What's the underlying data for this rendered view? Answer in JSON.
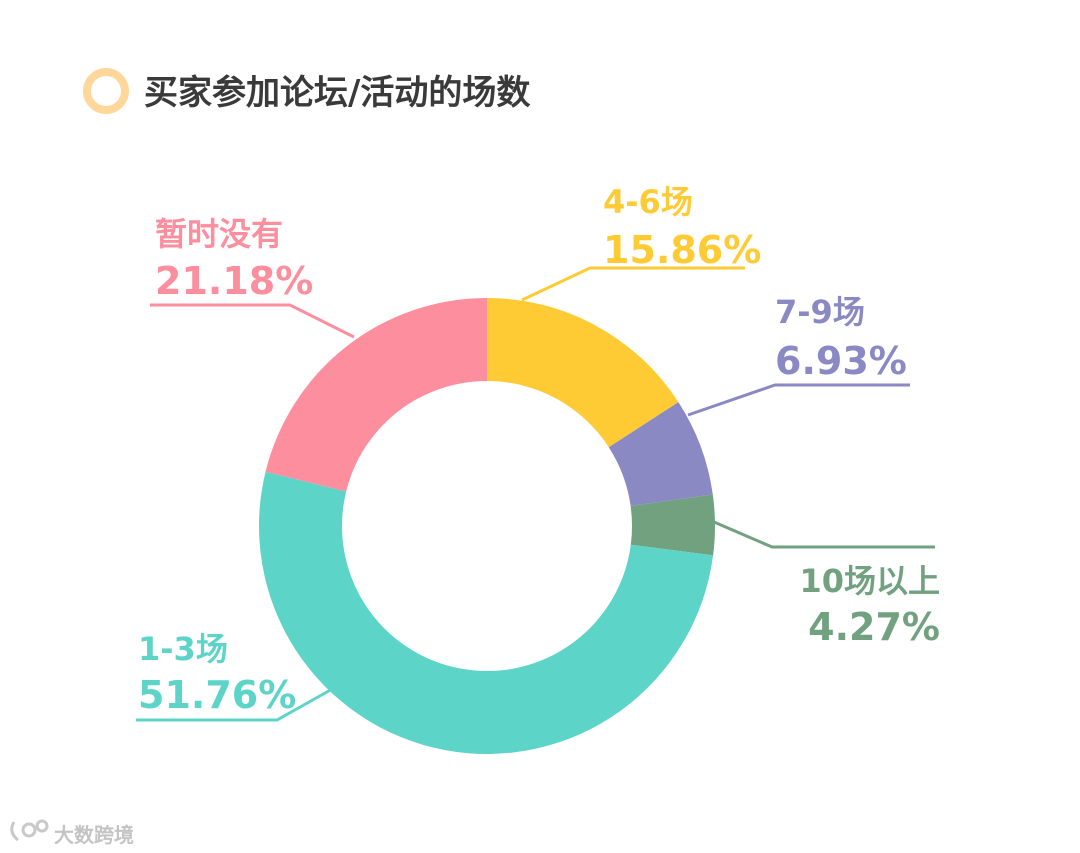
{
  "chart_data": {
    "type": "pie",
    "title": "买家参加论坛/活动的场数",
    "slices": [
      {
        "name": "4-6场",
        "value": 15.86,
        "value_label": "15.86%",
        "color": "#FFCB34"
      },
      {
        "name": "7-9场",
        "value": 6.93,
        "value_label": "6.93%",
        "color": "#8A89C4"
      },
      {
        "name": "10场以上",
        "value": 4.27,
        "value_label": "4.27%",
        "color": "#71A17F"
      },
      {
        "name": "1-3场",
        "value": 51.76,
        "value_label": "51.76%",
        "color": "#5DD4C8"
      },
      {
        "name": "暂时没有",
        "value": 21.18,
        "value_label": "21.18%",
        "color": "#FC8E9D"
      }
    ],
    "legend": "none"
  },
  "decor": {
    "title_ring_color": "#FFD79B"
  },
  "watermark": {
    "text": "大数跨境"
  }
}
